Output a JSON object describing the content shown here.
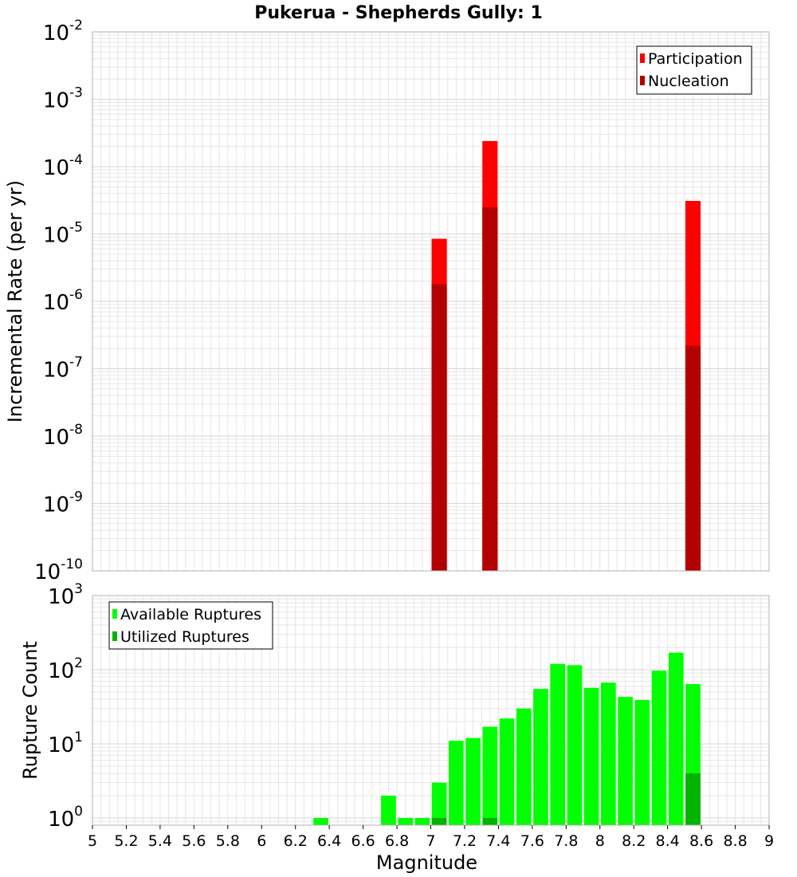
{
  "colors": {
    "participation": "#ff0000",
    "nucleation": "#b30000",
    "available": "#00ff00",
    "utilized": "#00b300",
    "grid": "#e6e6e6",
    "frame": "#b0b0b0"
  },
  "chart_data": [
    {
      "type": "bar",
      "title": "Pukerua - Shepherds Gully: 1",
      "ylabel": "Incremental Rate (per yr)",
      "xlabel": "",
      "xlim": [
        5,
        9
      ],
      "yscale": "log",
      "ylim": [
        1e-10,
        0.01
      ],
      "y_ticks": [
        {
          "base": "10",
          "exp": "-10"
        },
        {
          "base": "10",
          "exp": "-9"
        },
        {
          "base": "10",
          "exp": "-8"
        },
        {
          "base": "10",
          "exp": "-7"
        },
        {
          "base": "10",
          "exp": "-6"
        },
        {
          "base": "10",
          "exp": "-5"
        },
        {
          "base": "10",
          "exp": "-4"
        },
        {
          "base": "10",
          "exp": "-3"
        },
        {
          "base": "10",
          "exp": "-2"
        }
      ],
      "legend": {
        "position": "top-right",
        "entries": [
          "Participation",
          "Nucleation"
        ]
      },
      "bin_width": 0.1,
      "series": [
        {
          "name": "Participation",
          "x": [
            7.05,
            7.35,
            8.55
          ],
          "values": [
            8.5e-06,
            0.00024,
            3.1e-05
          ]
        },
        {
          "name": "Nucleation",
          "x": [
            7.05,
            7.35,
            8.55
          ],
          "values": [
            1.8e-06,
            2.5e-05,
            2.2e-07
          ]
        }
      ]
    },
    {
      "type": "bar",
      "title": "",
      "ylabel": "Rupture Count",
      "xlabel": "Magnitude",
      "xlim": [
        5,
        9
      ],
      "x_ticks": [
        "5",
        "5.2",
        "5.4",
        "5.6",
        "5.8",
        "6",
        "6.2",
        "6.4",
        "6.6",
        "6.8",
        "7",
        "7.2",
        "7.4",
        "7.6",
        "7.8",
        "8",
        "8.2",
        "8.4",
        "8.6",
        "8.8",
        "9"
      ],
      "yscale": "log",
      "ylim": [
        0.8,
        1000
      ],
      "y_ticks": [
        {
          "base": "10",
          "exp": "0"
        },
        {
          "base": "10",
          "exp": "1"
        },
        {
          "base": "10",
          "exp": "2"
        },
        {
          "base": "10",
          "exp": "3"
        }
      ],
      "legend": {
        "position": "top-left",
        "entries": [
          "Available Ruptures",
          "Utilized Ruptures"
        ]
      },
      "bin_width": 0.1,
      "series": [
        {
          "name": "Available Ruptures",
          "x": [
            6.35,
            6.75,
            6.85,
            6.95,
            7.05,
            7.15,
            7.25,
            7.35,
            7.45,
            7.55,
            7.65,
            7.75,
            7.85,
            7.95,
            8.05,
            8.15,
            8.25,
            8.35,
            8.45,
            8.55
          ],
          "values": [
            1,
            2,
            1,
            1,
            3,
            11,
            12,
            17,
            22,
            30,
            55,
            120,
            115,
            57,
            67,
            43,
            39,
            97,
            170,
            64
          ]
        },
        {
          "name": "Utilized Ruptures",
          "x": [
            7.05,
            7.35,
            8.55
          ],
          "values": [
            1,
            1,
            4
          ]
        }
      ]
    }
  ]
}
